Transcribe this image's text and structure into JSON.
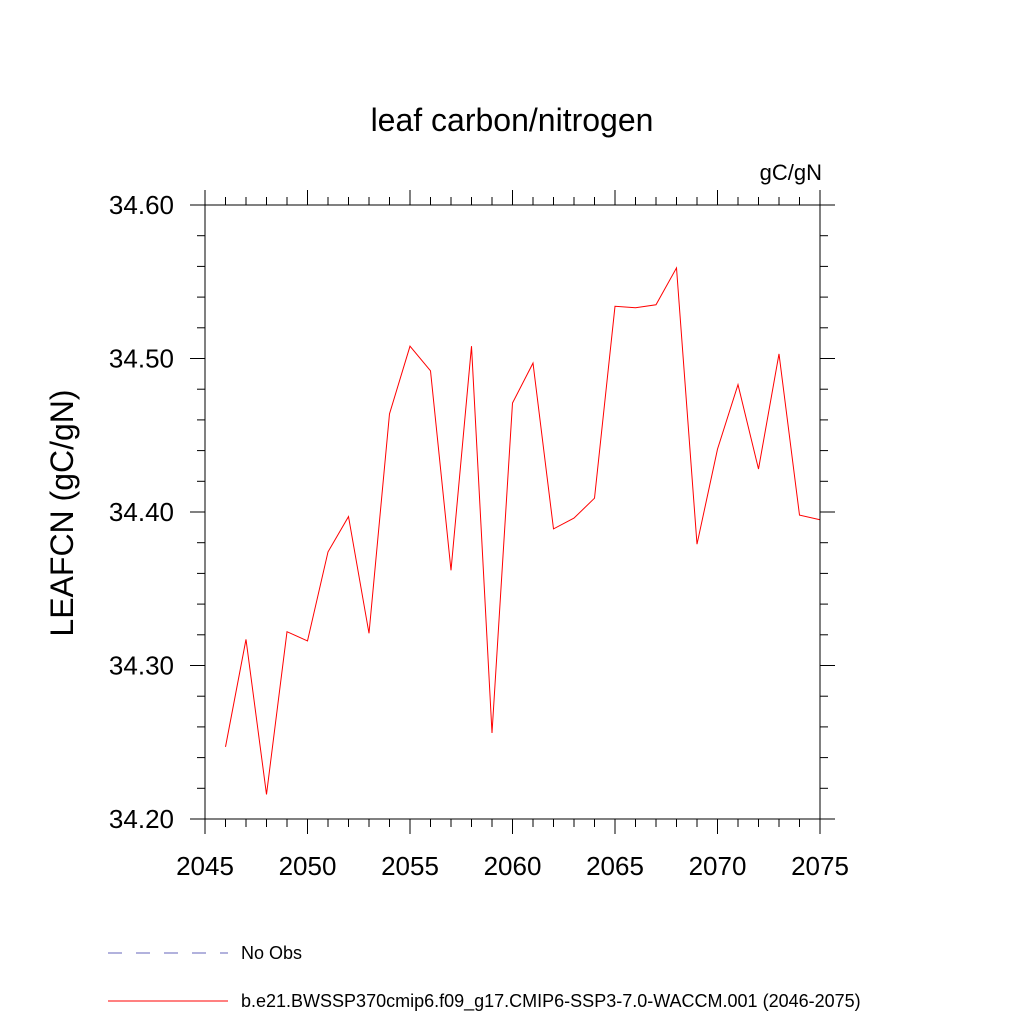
{
  "chart_data": {
    "type": "line",
    "title": "leaf carbon/nitrogen",
    "units_label": "gC/gN",
    "ylabel": "LEAFCN  (gC/gN)",
    "xlabel": "",
    "xlim": [
      2045,
      2075
    ],
    "ylim": [
      34.2,
      34.6
    ],
    "x_ticks": [
      2045,
      2050,
      2055,
      2060,
      2065,
      2070,
      2075
    ],
    "x_tick_labels": [
      "2045",
      "2050",
      "2055",
      "2060",
      "2065",
      "2070",
      "2075"
    ],
    "y_ticks": [
      34.2,
      34.3,
      34.4,
      34.5,
      34.6
    ],
    "y_tick_labels": [
      "34.20",
      "34.30",
      "34.40",
      "34.50",
      "34.60"
    ],
    "x_minor_step": 1,
    "y_minor_step": 0.02,
    "grid": false,
    "legend_position": "bottom-left",
    "series": [
      {
        "name": "b.e21.BWSSP370cmip6.f09_g17.CMIP6-SSP3-7.0-WACCM.001 (2046-2075)",
        "color": "#ff0000",
        "dash": "solid",
        "x": [
          2046,
          2047,
          2048,
          2049,
          2050,
          2051,
          2052,
          2053,
          2054,
          2055,
          2056,
          2057,
          2058,
          2059,
          2060,
          2061,
          2062,
          2063,
          2064,
          2065,
          2066,
          2067,
          2068,
          2069,
          2070,
          2071,
          2072,
          2073,
          2074,
          2075
        ],
        "values": [
          34.247,
          34.317,
          34.216,
          34.322,
          34.316,
          34.374,
          34.397,
          34.321,
          34.464,
          34.508,
          34.492,
          34.362,
          34.508,
          34.256,
          34.471,
          34.497,
          34.389,
          34.396,
          34.409,
          34.534,
          34.533,
          34.535,
          34.559,
          34.379,
          34.441,
          34.483,
          34.428,
          34.503,
          34.398,
          34.395
        ]
      }
    ],
    "legend": [
      {
        "name": "No Obs",
        "color": "#6666bb",
        "dash": "dashed"
      },
      {
        "name": "b.e21.BWSSP370cmip6.f09_g17.CMIP6-SSP3-7.0-WACCM.001 (2046-2075)",
        "color": "#ff0000",
        "dash": "solid"
      }
    ]
  }
}
